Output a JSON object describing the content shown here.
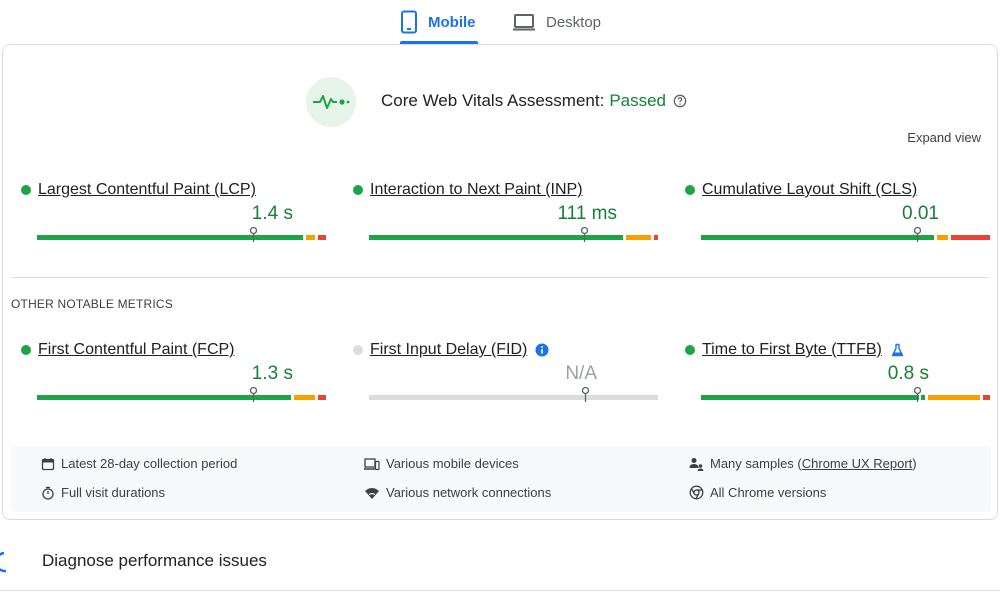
{
  "tabs": {
    "mobile": "Mobile",
    "desktop": "Desktop",
    "active": "mobile"
  },
  "assessment": {
    "label": "Core Web Vitals Assessment:",
    "status": "Passed",
    "expand": "Expand view"
  },
  "core_metrics": [
    {
      "name": "Largest Contentful Paint (LCP)",
      "value": "1.4 s",
      "status": "good"
    },
    {
      "name": "Interaction to Next Paint (INP)",
      "value": "111 ms",
      "status": "good"
    },
    {
      "name": "Cumulative Layout Shift (CLS)",
      "value": "0.01",
      "status": "good"
    }
  ],
  "other_heading": "OTHER NOTABLE METRICS",
  "other_metrics": [
    {
      "name": "First Contentful Paint (FCP)",
      "value": "1.3 s",
      "status": "good"
    },
    {
      "name": "First Input Delay (FID)",
      "value": "N/A",
      "status": "none"
    },
    {
      "name": "Time to First Byte (TTFB)",
      "value": "0.8 s",
      "status": "good"
    }
  ],
  "footer": {
    "period": "Latest 28-day collection period",
    "devices": "Various mobile devices",
    "samples_prefix": "Many samples (",
    "samples_link": "Chrome UX Report",
    "samples_suffix": ")",
    "durations": "Full visit durations",
    "network": "Various network connections",
    "versions": "All Chrome versions"
  },
  "diagnose": {
    "title": "Diagnose performance issues"
  },
  "colors": {
    "good": "#1ea446",
    "average": "#f9a000",
    "poor": "#ea4335",
    "accent": "#1a73e8",
    "passed": "#188038"
  }
}
